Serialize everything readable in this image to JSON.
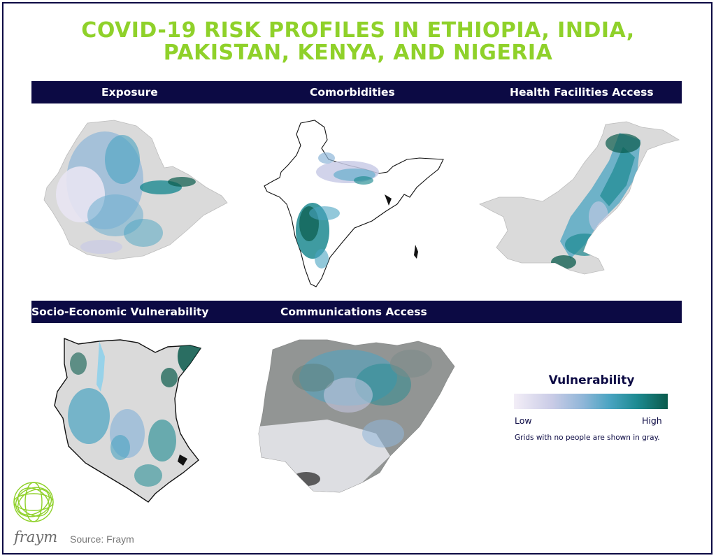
{
  "title": {
    "line1": "COVID-19 RISK PROFILES  IN ETHIOPIA, INDIA,",
    "line2": "PAKISTAN, KENYA, AND NIGERIA"
  },
  "panels": [
    {
      "label": "Exposure",
      "country": "Ethiopia"
    },
    {
      "label": "Comorbidities",
      "country": "India"
    },
    {
      "label": "Health Facilities Access",
      "country": "Pakistan"
    },
    {
      "label": "Socio-Economic Vulnerability",
      "country": "Kenya"
    },
    {
      "label": "Communications Access",
      "country": "Nigeria"
    }
  ],
  "legend": {
    "title": "Vulnerability",
    "low": "Low",
    "high": "High",
    "note": "Grids with no people are shown in gray.",
    "colors": [
      "#f3eef7",
      "#c9cbe6",
      "#8fb6d8",
      "#4aa4c2",
      "#1d8a91",
      "#0a5b4c"
    ],
    "no_data_color": "#d9d9d9"
  },
  "brand": {
    "logo_text": "fraym",
    "logo_color": "#8fd12a"
  },
  "source": "Source: Fraym",
  "colors": {
    "title": "#8fd12a",
    "band": "#0c0a44"
  }
}
